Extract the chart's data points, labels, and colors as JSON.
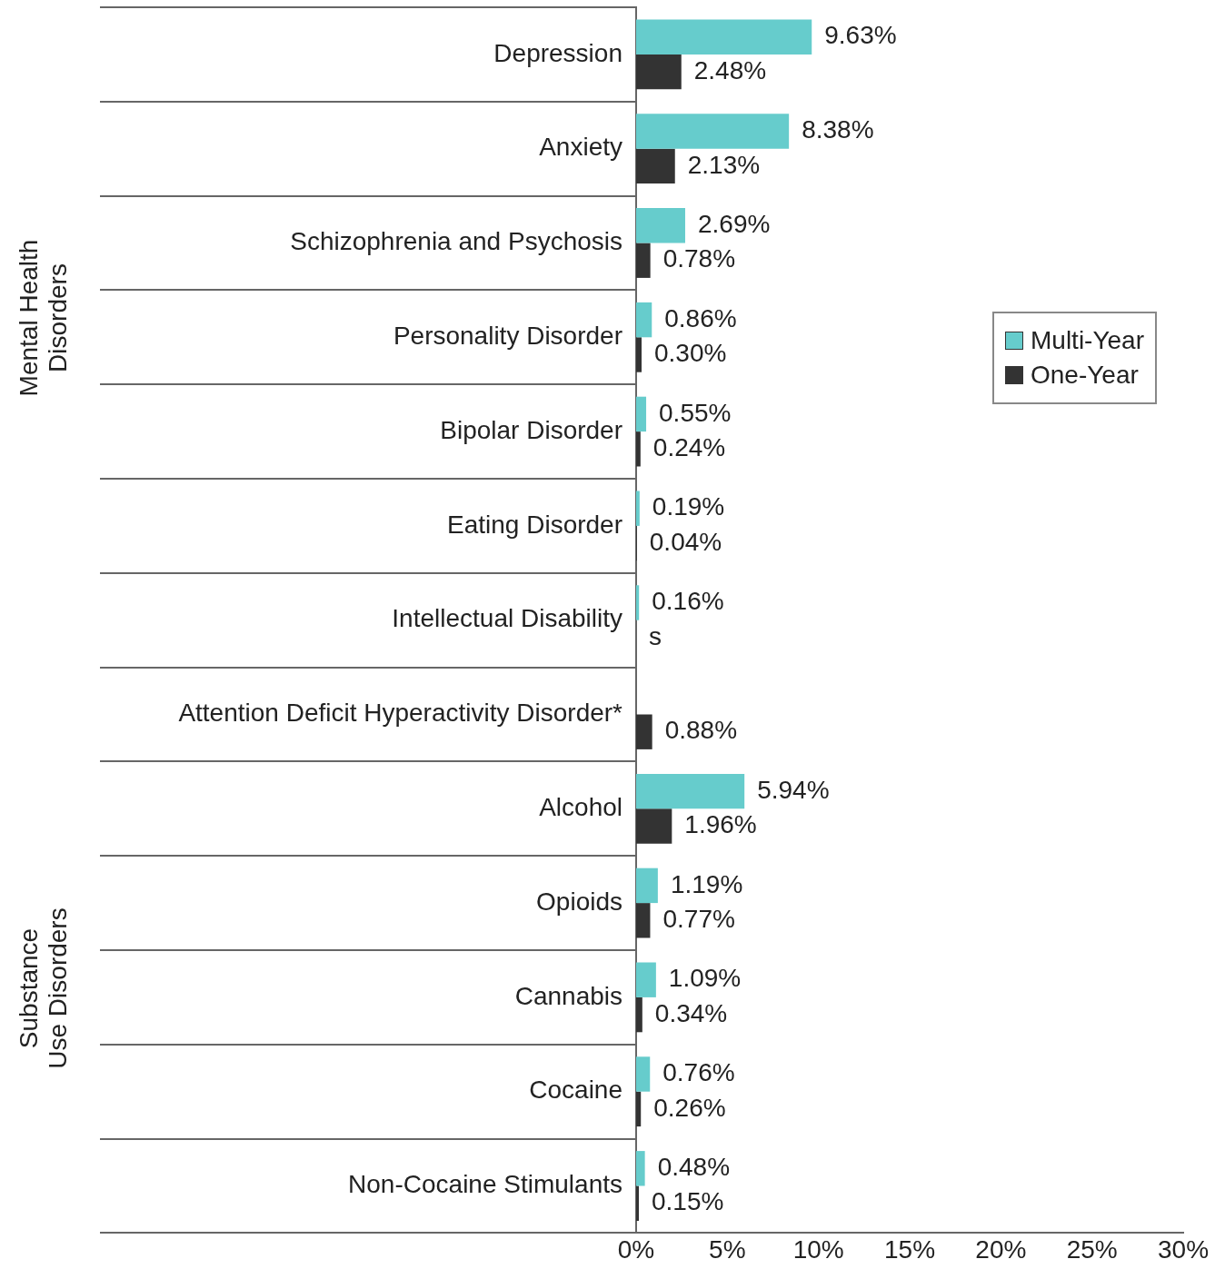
{
  "chart_data": {
    "type": "bar",
    "orientation": "horizontal",
    "legend": "right",
    "categories": [
      "Depression",
      "Anxiety",
      "Schizophrenia and Psychosis",
      "Personality Disorder",
      "Bipolar Disorder",
      "Eating Disorder",
      "Intellectual Disability",
      "Attention Deficit Hyperactivity Disorder*",
      "Alcohol",
      "Opioids",
      "Cannabis",
      "Cocaine",
      "Non-Cocaine Stimulants"
    ],
    "series": [
      {
        "name": "Multi-Year",
        "color": "#66cccc",
        "values": [
          9.63,
          8.38,
          2.69,
          0.86,
          0.55,
          0.19,
          0.16,
          null,
          5.94,
          1.19,
          1.09,
          0.76,
          0.48
        ],
        "value_labels": [
          "9.63%",
          "8.38%",
          "2.69%",
          "0.86%",
          "0.55%",
          "0.19%",
          "0.16%",
          null,
          "5.94%",
          "1.19%",
          "1.09%",
          "0.76%",
          "0.48%"
        ]
      },
      {
        "name": "One-Year",
        "color": "#333333",
        "values": [
          2.48,
          2.13,
          0.78,
          0.3,
          0.24,
          0.04,
          null,
          0.88,
          1.96,
          0.77,
          0.34,
          0.26,
          0.15
        ],
        "value_labels": [
          "2.48%",
          "2.13%",
          "0.78%",
          "0.30%",
          "0.24%",
          "0.04%",
          "s",
          "0.88%",
          "1.96%",
          "0.77%",
          "0.34%",
          "0.26%",
          "0.15%"
        ]
      }
    ],
    "xlim": [
      0,
      30
    ],
    "xticks": [
      {
        "value": 0,
        "label": "0%"
      },
      {
        "value": 5,
        "label": "5%"
      },
      {
        "value": 10,
        "label": "10%"
      },
      {
        "value": 15,
        "label": "15%"
      },
      {
        "value": 20,
        "label": "20%"
      },
      {
        "value": 25,
        "label": "25%"
      },
      {
        "value": 30,
        "label": "30%"
      }
    ],
    "annotations": [
      "Mental Health Disorders",
      "Substance Use Disorders"
    ]
  }
}
